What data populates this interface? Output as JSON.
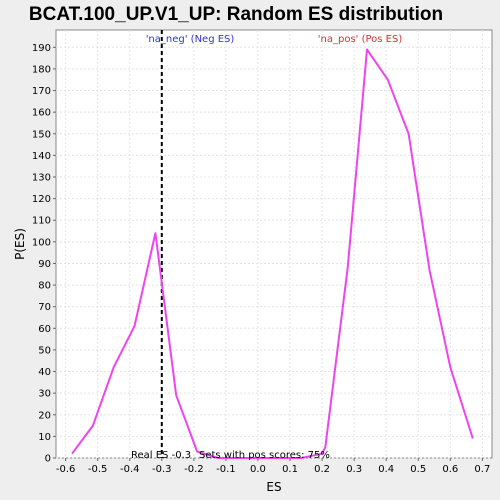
{
  "chart_data": {
    "type": "line",
    "title": "BCAT.100_UP.V1_UP: Random ES distribution",
    "xlabel": "ES",
    "ylabel": "P(ES)",
    "xlim": [
      -0.63,
      0.73
    ],
    "ylim": [
      0,
      198
    ],
    "xticks": [
      -0.6,
      -0.5,
      -0.4,
      -0.3,
      -0.2,
      -0.1,
      0.0,
      0.1,
      0.2,
      0.3,
      0.4,
      0.5,
      0.6,
      0.7
    ],
    "xtick_labels": [
      "-0.6",
      "-0.5",
      "-0.4",
      "-0.3",
      "-0.2",
      "-0.1",
      "0.0",
      "0.1",
      "0.2",
      "0.3",
      "0.4",
      "0.5",
      "0.6",
      "0.7"
    ],
    "yticks": [
      0,
      10,
      20,
      30,
      40,
      50,
      60,
      70,
      80,
      90,
      100,
      110,
      120,
      130,
      140,
      150,
      160,
      170,
      180,
      190
    ],
    "ytick_labels": [
      "0",
      "10",
      "20",
      "30",
      "40",
      "50",
      "60",
      "70",
      "80",
      "90",
      "100",
      "110",
      "120",
      "130",
      "140",
      "150",
      "160",
      "170",
      "180",
      "190"
    ],
    "grid": true,
    "series": [
      {
        "color": "#ee44ee",
        "x": [
          -0.58,
          -0.515,
          -0.45,
          -0.385,
          -0.32,
          -0.255,
          -0.19,
          -0.125,
          -0.06,
          0.005,
          0.07,
          0.135,
          0.2,
          0.21,
          0.28,
          0.34,
          0.405,
          0.47,
          0.535,
          0.6,
          0.67
        ],
        "y": [
          2,
          15,
          42,
          61,
          104,
          29,
          3,
          0,
          0,
          0,
          0,
          0,
          2,
          5,
          88,
          189,
          175,
          150,
          87,
          42,
          9
        ]
      }
    ],
    "real_es": -0.3,
    "real_es_line_color": "#000000",
    "annotations": {
      "neg_label": "'na_neg' (Neg ES)",
      "neg_color": "#3333cc",
      "pos_label": "'na_pos' (Pos ES)",
      "pos_color": "#cc3333",
      "real_es_text": "Real ES -0.3",
      "pos_scores_text": "Sets with pos scores: 75%"
    }
  }
}
